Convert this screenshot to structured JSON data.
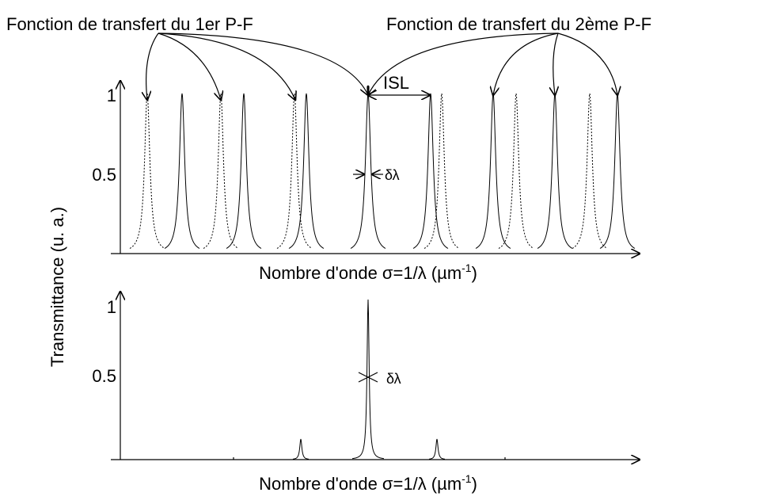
{
  "titles": [
    "Fonction de transfert du 1er P-F",
    "Fonction de transfert du 2ème P-F"
  ],
  "top_plot": {
    "yticks": [
      "1",
      "0.5"
    ],
    "isl": "ISL",
    "width": "δλ",
    "xlabel": [
      "Nombre d'onde σ=1/λ (µm",
      "-1",
      ")"
    ]
  },
  "bottom_plot": {
    "yticks": [
      "1",
      "0.5"
    ],
    "width": "δλ",
    "xlabel": [
      "Nombre d'onde σ=1/λ (µm",
      "-1",
      ")"
    ]
  },
  "ylabel": "Transmittance (u. a.)"
}
